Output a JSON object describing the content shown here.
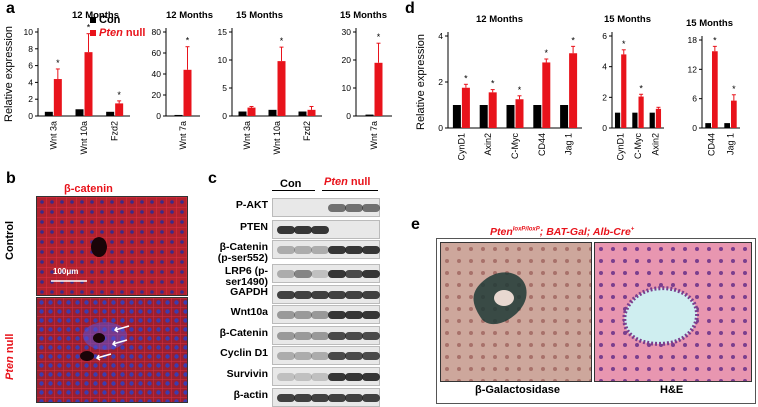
{
  "panels": {
    "a": "a",
    "b": "b",
    "c": "c",
    "d": "d",
    "e": "e"
  },
  "colors": {
    "con": "#000000",
    "pten": "#e8131b"
  },
  "legend": {
    "con": "Con",
    "pten_italic": "Pten",
    "pten_rest": " null"
  },
  "chart_data": [
    {
      "type": "bar",
      "panel": "a",
      "title": "12 Months",
      "ylabel": "Relative expression",
      "categories": [
        "Wnt 3a",
        "Wnt 10a",
        "Fzd2"
      ],
      "ylim": [
        0,
        10
      ],
      "yticks": [
        0,
        2,
        4,
        6,
        8,
        10
      ],
      "series": [
        {
          "name": "Con",
          "values": [
            0.5,
            0.8,
            0.5
          ]
        },
        {
          "name": "Pten null",
          "values": [
            4.4,
            7.6,
            1.5
          ]
        }
      ],
      "errors": [
        [
          0,
          0,
          0
        ],
        [
          1.2,
          2.2,
          0.3
        ]
      ],
      "significance": [
        "*",
        "*",
        "*"
      ]
    },
    {
      "type": "bar",
      "panel": "a",
      "title": "12 Months",
      "categories": [
        "Wnt 7a"
      ],
      "ylim": [
        0,
        80
      ],
      "yticks": [
        0,
        20,
        40,
        60,
        80
      ],
      "series": [
        {
          "name": "Con",
          "values": [
            1
          ]
        },
        {
          "name": "Pten null",
          "values": [
            44
          ]
        }
      ],
      "errors": [
        [
          0
        ],
        [
          22
        ]
      ],
      "significance": [
        "*"
      ]
    },
    {
      "type": "bar",
      "panel": "a",
      "title": "15 Months",
      "categories": [
        "Wnt 3a",
        "Wnt 10a",
        "Fzd2"
      ],
      "ylim": [
        0,
        15
      ],
      "yticks": [
        0,
        5,
        10,
        15
      ],
      "series": [
        {
          "name": "Con",
          "values": [
            0.8,
            1.1,
            0.8
          ]
        },
        {
          "name": "Pten null",
          "values": [
            1.5,
            9.8,
            1.1
          ]
        }
      ],
      "errors": [
        [
          0,
          0,
          0
        ],
        [
          0.2,
          2.5,
          0.6
        ]
      ],
      "significance": [
        "",
        "*",
        ""
      ]
    },
    {
      "type": "bar",
      "panel": "a",
      "title": "15 Months",
      "categories": [
        "Wnt 7a"
      ],
      "ylim": [
        0,
        30
      ],
      "yticks": [
        0,
        10,
        20,
        30
      ],
      "series": [
        {
          "name": "Con",
          "values": [
            0.5
          ]
        },
        {
          "name": "Pten null",
          "values": [
            19
          ]
        }
      ],
      "errors": [
        [
          0
        ],
        [
          7
        ]
      ],
      "significance": [
        "*"
      ]
    },
    {
      "type": "bar",
      "panel": "d",
      "title": "12 Months",
      "ylabel": "Relative expression",
      "categories": [
        "CynD1",
        "Axin2",
        "C-Myc",
        "CD44",
        "Jag 1"
      ],
      "ylim": [
        0,
        4
      ],
      "yticks": [
        0,
        2,
        4
      ],
      "series": [
        {
          "name": "Con",
          "values": [
            1,
            1,
            1,
            1,
            1
          ]
        },
        {
          "name": "Pten null",
          "values": [
            1.75,
            1.55,
            1.25,
            2.85,
            3.25
          ]
        }
      ],
      "errors": [
        [
          0,
          0,
          0,
          0,
          0
        ],
        [
          0.15,
          0.12,
          0.15,
          0.15,
          0.3
        ]
      ],
      "significance": [
        "*",
        "*",
        "*",
        "*",
        "*"
      ]
    },
    {
      "type": "bar",
      "panel": "d",
      "title": "15 Months",
      "categories": [
        "CynD1",
        "C-Myc",
        "Axin2"
      ],
      "ylim": [
        0,
        6
      ],
      "yticks": [
        0,
        2,
        4,
        6
      ],
      "series": [
        {
          "name": "Con",
          "values": [
            1,
            1,
            1
          ]
        },
        {
          "name": "Pten null",
          "values": [
            4.8,
            2.05,
            1.25
          ]
        }
      ],
      "errors": [
        [
          0,
          0,
          0
        ],
        [
          0.3,
          0.15,
          0.1
        ]
      ],
      "significance": [
        "*",
        "*",
        ""
      ]
    },
    {
      "type": "bar",
      "panel": "d",
      "title": "15 Months",
      "categories": [
        "CD44",
        "Jag 1"
      ],
      "ylim": [
        0,
        18
      ],
      "yticks": [
        0,
        6,
        12,
        18
      ],
      "series": [
        {
          "name": "Con",
          "values": [
            1,
            1
          ]
        },
        {
          "name": "Pten null",
          "values": [
            15.7,
            5.6
          ]
        }
      ],
      "errors": [
        [
          0,
          0
        ],
        [
          1.0,
          1.2
        ]
      ],
      "significance": [
        "*",
        "*"
      ]
    }
  ],
  "panel_b": {
    "stain": "β-catenin",
    "row_control": "Control",
    "row_pten_italic": "Pten",
    "row_pten_rest": " null",
    "scale": "100μm"
  },
  "panel_c": {
    "col_con": "Con",
    "col_pten_italic": "Pten",
    "col_pten_rest": " null",
    "rows": [
      {
        "label": "P-AKT",
        "pattern": [
          0,
          0,
          0,
          0.6,
          0.6,
          0.6
        ]
      },
      {
        "label": "PTEN",
        "pattern": [
          0.9,
          0.9,
          0.9,
          0,
          0,
          0
        ]
      },
      {
        "label": "β-Catenin (p-ser552)",
        "pattern": [
          0.3,
          0.3,
          0.3,
          0.9,
          0.9,
          0.9
        ]
      },
      {
        "label": "LRP6 (p-ser1490)",
        "pattern": [
          0.3,
          0.5,
          0.2,
          0.9,
          0.8,
          0.9
        ]
      },
      {
        "label": "GAPDH",
        "pattern": [
          0.85,
          0.85,
          0.85,
          0.85,
          0.85,
          0.85
        ]
      },
      {
        "label": "Wnt10a",
        "pattern": [
          0.4,
          0.4,
          0.4,
          0.9,
          0.9,
          0.9
        ]
      },
      {
        "label": "β-Catenin",
        "pattern": [
          0.4,
          0.4,
          0.4,
          0.8,
          0.8,
          0.8
        ]
      },
      {
        "label": "Cyclin D1",
        "pattern": [
          0.3,
          0.3,
          0.3,
          0.8,
          0.8,
          0.8
        ]
      },
      {
        "label": "Survivin",
        "pattern": [
          0.2,
          0.2,
          0.2,
          0.9,
          0.9,
          0.9
        ]
      },
      {
        "label": "β-actin",
        "pattern": [
          0.85,
          0.85,
          0.85,
          0.85,
          0.85,
          0.85
        ]
      }
    ]
  },
  "panel_e": {
    "genotype": "Pten",
    "genotype_sup": "loxP/loxP",
    "genotype_rest": "; BAT-Gal; Alb-Cre",
    "genotype_sup2": "+",
    "label_left": "β-Galactosidase",
    "label_right": "H&E"
  }
}
